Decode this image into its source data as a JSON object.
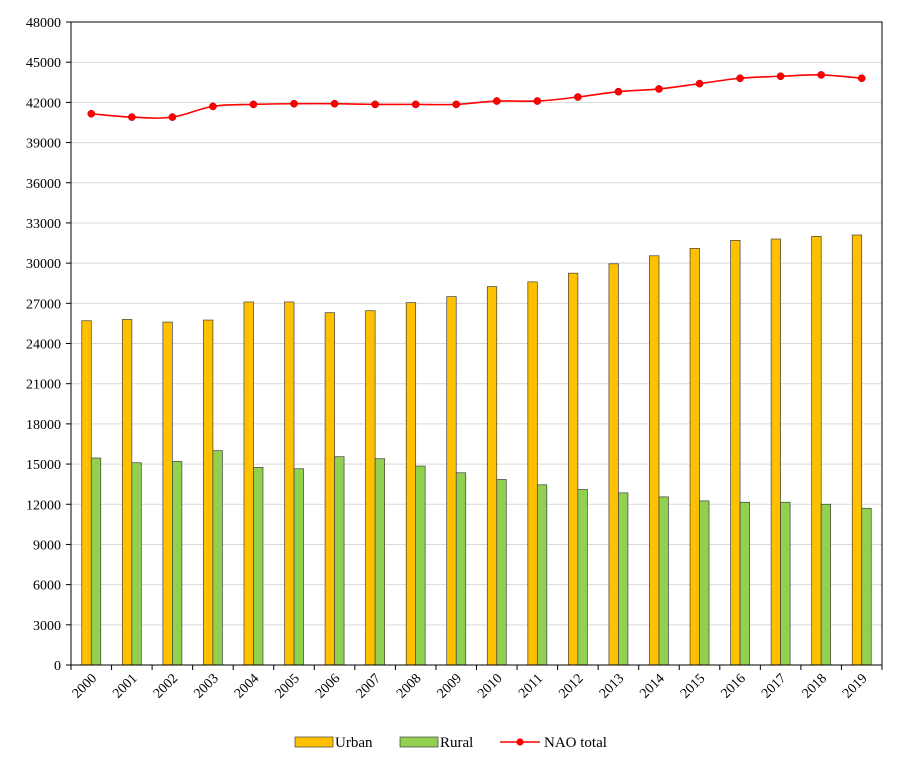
{
  "chart_data": {
    "type": "bar",
    "title": "",
    "xlabel": "",
    "ylabel": "",
    "ylim": [
      0,
      48000
    ],
    "yticks": [
      0,
      3000,
      6000,
      9000,
      12000,
      15000,
      18000,
      21000,
      24000,
      27000,
      30000,
      33000,
      36000,
      39000,
      42000,
      45000,
      48000
    ],
    "grid": true,
    "legend_position": "bottom",
    "categories": [
      "2000",
      "2001",
      "2002",
      "2003",
      "2004",
      "2005",
      "2006",
      "2007",
      "2008",
      "2009",
      "2010",
      "2011",
      "2012",
      "2013",
      "2014",
      "2015",
      "2016",
      "2017",
      "2018",
      "2019"
    ],
    "series": [
      {
        "name": "Urban",
        "kind": "bar",
        "color": "#FFC000",
        "values": [
          25700,
          25800,
          25600,
          25750,
          27100,
          27100,
          26300,
          26450,
          27050,
          27500,
          28250,
          28600,
          29250,
          29950,
          30550,
          31100,
          31700,
          31800,
          32000,
          32100
        ]
      },
      {
        "name": "Rural",
        "kind": "bar",
        "color": "#92D050",
        "values": [
          15450,
          15100,
          15200,
          16000,
          14750,
          14650,
          15550,
          15400,
          14850,
          14350,
          13850,
          13450,
          13100,
          12850,
          12550,
          12250,
          12150,
          12150,
          12000,
          11700
        ]
      },
      {
        "name": "NAO total",
        "kind": "line",
        "color": "#FF0000",
        "values": [
          41150,
          40900,
          40900,
          41700,
          41850,
          41900,
          41900,
          41850,
          41850,
          41850,
          42100,
          42100,
          42400,
          42800,
          43000,
          43400,
          43800,
          43950,
          44050,
          43800
        ]
      }
    ]
  }
}
